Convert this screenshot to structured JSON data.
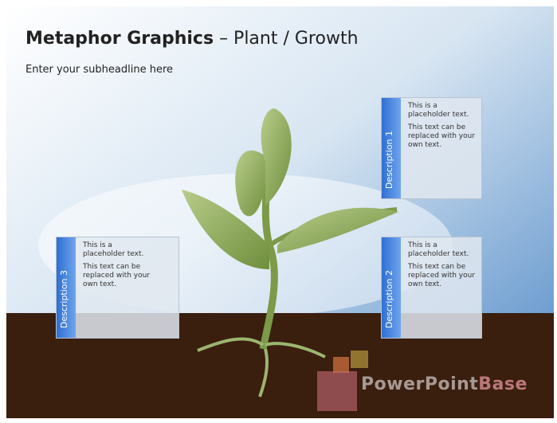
{
  "header": {
    "title_bold": "Metaphor Graphics",
    "title_rest": "– Plant / Growth",
    "subheadline": "Enter your subheadline here"
  },
  "descriptions": [
    {
      "label": "Description 1",
      "text1": "This is a placeholder text.",
      "text2": "This text can be replaced with your own text."
    },
    {
      "label": "Description 2",
      "text1": "This is a placeholder text.",
      "text2": "This text can be replaced with your own text."
    },
    {
      "label": "Description 3",
      "text1": "This is a placeholder text.",
      "text2": "This text can be replaced with your own text."
    }
  ],
  "watermark": {
    "part1": "PowerPoint",
    "part2": "Base"
  }
}
